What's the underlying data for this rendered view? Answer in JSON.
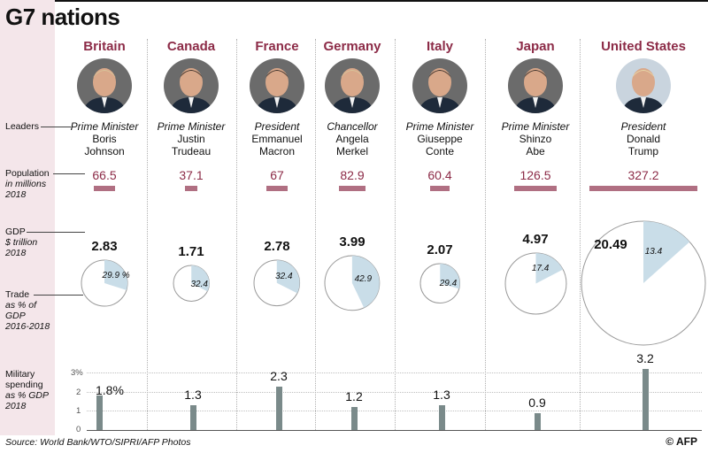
{
  "title": "G7 nations",
  "labels": {
    "leaders": "Leaders",
    "population": "Population",
    "population_unit": "in millions",
    "population_year": "2018",
    "gdp": "GDP",
    "gdp_unit": "$ trillion",
    "gdp_year": "2018",
    "trade": "Trade",
    "trade_unit": "as % of",
    "trade_unit2": "GDP",
    "trade_years": "2016-2018",
    "military": "Military",
    "military2": "spending",
    "military_unit": "as % GDP",
    "military_year": "2018"
  },
  "source": "Source: World Bank/WTO/SIPRI/AFP Photos",
  "credit": "© AFP",
  "colors": {
    "accent": "#8c2b47",
    "popbar": "#b06f82",
    "tradefill": "#c9dde8",
    "milbar": "#7a8a8a",
    "sidebar": "#f4e6ea"
  },
  "chart_data": {
    "type": "table",
    "countries": [
      {
        "name": "Britain",
        "role": "Prime Minister",
        "leader_first": "Boris",
        "leader_last": "Johnson",
        "population": "66.5",
        "gdp": "2.83",
        "trade": "29.9 %",
        "trade_pct": 29.9,
        "military": "1.8%",
        "military_pct": 1.8
      },
      {
        "name": "Canada",
        "role": "Prime Minister",
        "leader_first": "Justin",
        "leader_last": "Trudeau",
        "population": "37.1",
        "gdp": "1.71",
        "trade": "32.4",
        "trade_pct": 32.4,
        "military": "1.3",
        "military_pct": 1.3
      },
      {
        "name": "France",
        "role": "President",
        "leader_first": "Emmanuel",
        "leader_last": "Macron",
        "population": "67",
        "gdp": "2.78",
        "trade": "32.4",
        "trade_pct": 32.4,
        "military": "2.3",
        "military_pct": 2.3
      },
      {
        "name": "Germany",
        "role": "Chancellor",
        "leader_first": "Angela",
        "leader_last": "Merkel",
        "population": "82.9",
        "gdp": "3.99",
        "trade": "42.9",
        "trade_pct": 42.9,
        "military": "1.2",
        "military_pct": 1.2
      },
      {
        "name": "Italy",
        "role": "Prime Minister",
        "leader_first": "Giuseppe",
        "leader_last": "Conte",
        "population": "60.4",
        "gdp": "2.07",
        "trade": "29.4",
        "trade_pct": 29.4,
        "military": "1.3",
        "military_pct": 1.3
      },
      {
        "name": "Japan",
        "role": "Prime Minister",
        "leader_first": "Shinzo",
        "leader_last": "Abe",
        "population": "126.5",
        "gdp": "4.97",
        "trade": "17.4",
        "trade_pct": 17.4,
        "military": "0.9",
        "military_pct": 0.9
      },
      {
        "name": "United States",
        "role": "President",
        "leader_first": "Donald",
        "leader_last": "Trump",
        "population": "327.2",
        "gdp": "20.49",
        "trade": "13.4",
        "trade_pct": 13.4,
        "military": "3.2",
        "military_pct": 3.2
      }
    ],
    "military_axis": {
      "ticks": [
        "0",
        "1",
        "2",
        "3%"
      ],
      "max": 3
    }
  }
}
